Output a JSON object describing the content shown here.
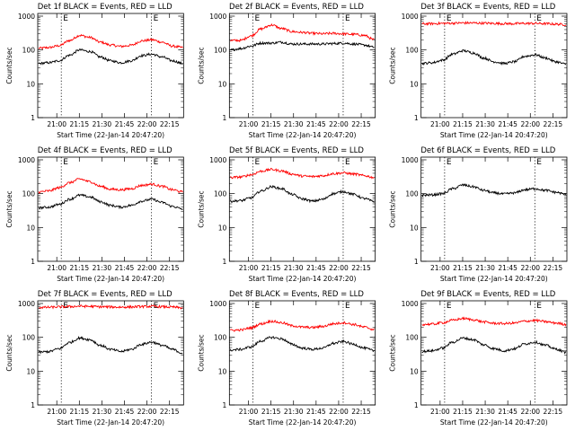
{
  "chart_data": [
    {
      "type": "line",
      "title": "Det 1f BLACK = Events, RED = LLD",
      "ylabel": "Counts/sec",
      "xlabel": "Start Time (22-Jan-14 20:47:20)",
      "x_ticks": [
        "21:00",
        "21:15",
        "21:30",
        "21:45",
        "22:00",
        "22:15"
      ],
      "y_ticks": [
        "1",
        "10",
        "100",
        "1000"
      ],
      "ylim": [
        1,
        1200
      ],
      "yscale": "log",
      "markers": [
        {
          "label": "E",
          "x": "21:03"
        },
        {
          "label": "E",
          "x": "22:03"
        }
      ],
      "series": [
        {
          "color": "#ff0000",
          "values": [
            112,
            118,
            134,
            190,
            270,
            235,
            170,
            140,
            128,
            138,
            185,
            200,
            170,
            130,
            118
          ]
        },
        {
          "color": "#000000",
          "values": [
            40,
            42,
            48,
            70,
            100,
            90,
            62,
            48,
            42,
            48,
            68,
            75,
            62,
            48,
            40
          ]
        }
      ]
    },
    {
      "type": "line",
      "title": "Det 2f BLACK = Events, RED = LLD",
      "ylabel": "Counts/sec",
      "xlabel": "Start Time (22-Jan-14 20:47:20)",
      "x_ticks": [
        "21:00",
        "21:15",
        "21:30",
        "21:45",
        "22:00",
        "22:15"
      ],
      "y_ticks": [
        "1",
        "10",
        "100",
        "1000"
      ],
      "ylim": [
        1,
        1200
      ],
      "yscale": "log",
      "markers": [
        {
          "label": "E",
          "x": "21:03"
        },
        {
          "label": "E",
          "x": "22:03"
        }
      ],
      "series": [
        {
          "color": "#ff0000",
          "values": [
            190,
            192,
            260,
            420,
            550,
            430,
            350,
            330,
            310,
            300,
            310,
            300,
            290,
            270,
            200
          ]
        },
        {
          "color": "#000000",
          "values": [
            100,
            110,
            130,
            160,
            160,
            170,
            150,
            150,
            150,
            150,
            155,
            160,
            150,
            140,
            120
          ]
        }
      ]
    },
    {
      "type": "line",
      "title": "Det 3f BLACK = Events, RED = LLD",
      "ylabel": "Counts/sec",
      "xlabel": "Start Time (22-Jan-14 20:47:20)",
      "x_ticks": [
        "21:00",
        "21:15",
        "21:30",
        "21:45",
        "22:00",
        "22:15"
      ],
      "y_ticks": [
        "1",
        "10",
        "100",
        "1000"
      ],
      "ylim": [
        1,
        1200
      ],
      "yscale": "log",
      "markers": [
        {
          "label": "E",
          "x": "21:03"
        },
        {
          "label": "E",
          "x": "22:03"
        }
      ],
      "series": [
        {
          "color": "#ff0000",
          "values": [
            590,
            600,
            610,
            620,
            630,
            630,
            620,
            610,
            600,
            600,
            610,
            610,
            600,
            580,
            560
          ]
        },
        {
          "color": "#000000",
          "values": [
            40,
            42,
            50,
            75,
            95,
            82,
            58,
            45,
            40,
            45,
            65,
            72,
            58,
            45,
            38
          ]
        }
      ]
    },
    {
      "type": "line",
      "title": "Det 4f BLACK = Events, RED = LLD",
      "ylabel": "Counts/sec",
      "xlabel": "Start Time (22-Jan-14 20:47:20)",
      "x_ticks": [
        "21:00",
        "21:15",
        "21:30",
        "21:45",
        "22:00",
        "22:15"
      ],
      "y_ticks": [
        "1",
        "10",
        "100",
        "1000"
      ],
      "ylim": [
        1,
        1200
      ],
      "yscale": "log",
      "markers": [
        {
          "label": "E",
          "x": "21:03"
        },
        {
          "label": "E",
          "x": "22:03"
        }
      ],
      "series": [
        {
          "color": "#ff0000",
          "values": [
            112,
            120,
            150,
            210,
            270,
            225,
            165,
            135,
            130,
            140,
            175,
            190,
            165,
            130,
            112
          ]
        },
        {
          "color": "#000000",
          "values": [
            38,
            40,
            48,
            68,
            90,
            80,
            58,
            45,
            40,
            45,
            60,
            68,
            55,
            42,
            35
          ]
        }
      ]
    },
    {
      "type": "line",
      "title": "Det 5f BLACK = Events, RED = LLD",
      "ylabel": "Counts/sec",
      "xlabel": "Start Time (22-Jan-14 20:47:20)",
      "x_ticks": [
        "21:00",
        "21:15",
        "21:30",
        "21:45",
        "22:00",
        "22:15"
      ],
      "y_ticks": [
        "1",
        "10",
        "100",
        "1000"
      ],
      "ylim": [
        1,
        1200
      ],
      "yscale": "log",
      "markers": [
        {
          "label": "E",
          "x": "21:03"
        },
        {
          "label": "E",
          "x": "22:03"
        }
      ],
      "series": [
        {
          "color": "#ff0000",
          "values": [
            300,
            310,
            360,
            460,
            520,
            470,
            380,
            330,
            320,
            340,
            390,
            410,
            380,
            340,
            300
          ]
        },
        {
          "color": "#000000",
          "values": [
            60,
            62,
            75,
            120,
            160,
            140,
            95,
            70,
            60,
            68,
            100,
            115,
            95,
            72,
            58
          ]
        }
      ]
    },
    {
      "type": "line",
      "title": "Det 6f BLACK = Events, RED = LLD",
      "ylabel": "Counts/sec",
      "xlabel": "Start Time (22-Jan-14 20:47:20)",
      "x_ticks": [
        "21:00",
        "21:15",
        "21:30",
        "21:45",
        "22:00",
        "22:15"
      ],
      "y_ticks": [
        "1",
        "10",
        "100",
        "1000"
      ],
      "ylim": [
        1,
        1200
      ],
      "yscale": "log",
      "markers": [
        {
          "label": "E",
          "x": "21:03"
        },
        {
          "label": "E",
          "x": "22:03"
        }
      ],
      "series": [
        {
          "color": "#000000",
          "values": [
            90,
            92,
            100,
            140,
            180,
            160,
            125,
            105,
            98,
            105,
            130,
            140,
            125,
            110,
            95
          ]
        }
      ]
    },
    {
      "type": "line",
      "title": "Det 7f BLACK = Events, RED = LLD",
      "ylabel": "Counts/sec",
      "xlabel": "Start Time (22-Jan-14 20:47:20)",
      "x_ticks": [
        "21:00",
        "21:15",
        "21:30",
        "21:45",
        "22:00",
        "22:15"
      ],
      "y_ticks": [
        "1",
        "10",
        "100",
        "1000"
      ],
      "ylim": [
        1,
        1200
      ],
      "yscale": "log",
      "markers": [
        {
          "label": "E",
          "x": "21:03"
        },
        {
          "label": "E",
          "x": "22:03"
        }
      ],
      "series": [
        {
          "color": "#ff0000",
          "values": [
            760,
            770,
            790,
            810,
            830,
            820,
            800,
            790,
            780,
            790,
            810,
            820,
            800,
            780,
            740
          ]
        },
        {
          "color": "#000000",
          "values": [
            36,
            38,
            46,
            70,
            95,
            85,
            58,
            44,
            38,
            44,
            62,
            72,
            58,
            44,
            34
          ]
        }
      ]
    },
    {
      "type": "line",
      "title": "Det 8f BLACK = Events, RED = LLD",
      "ylabel": "Counts/sec",
      "xlabel": "Start Time (22-Jan-14 20:47:20)",
      "x_ticks": [
        "21:00",
        "21:15",
        "21:30",
        "21:45",
        "22:00",
        "22:15"
      ],
      "y_ticks": [
        "1",
        "10",
        "100",
        "1000"
      ],
      "ylim": [
        1,
        1200
      ],
      "yscale": "log",
      "markers": [
        {
          "label": "E",
          "x": "21:03"
        },
        {
          "label": "E",
          "x": "22:03"
        }
      ],
      "series": [
        {
          "color": "#ff0000",
          "values": [
            160,
            165,
            190,
            250,
            300,
            270,
            220,
            200,
            195,
            210,
            250,
            270,
            240,
            200,
            170
          ]
        },
        {
          "color": "#000000",
          "values": [
            42,
            44,
            52,
            78,
            100,
            90,
            62,
            48,
            44,
            48,
            66,
            75,
            62,
            48,
            40
          ]
        }
      ]
    },
    {
      "type": "line",
      "title": "Det 9f BLACK = Events, RED = LLD",
      "ylabel": "Counts/sec",
      "xlabel": "Start Time (22-Jan-14 20:47:20)",
      "x_ticks": [
        "21:00",
        "21:15",
        "21:30",
        "21:45",
        "22:00",
        "22:15"
      ],
      "y_ticks": [
        "1",
        "10",
        "100",
        "1000"
      ],
      "ylim": [
        1,
        1200
      ],
      "yscale": "log",
      "markers": [
        {
          "label": "E",
          "x": "21:03"
        },
        {
          "label": "E",
          "x": "22:03"
        }
      ],
      "series": [
        {
          "color": "#ff0000",
          "values": [
            240,
            245,
            270,
            320,
            360,
            330,
            285,
            260,
            255,
            265,
            300,
            315,
            290,
            265,
            240
          ]
        },
        {
          "color": "#000000",
          "values": [
            38,
            40,
            48,
            72,
            95,
            85,
            60,
            46,
            40,
            46,
            64,
            72,
            58,
            45,
            36
          ]
        }
      ]
    }
  ]
}
